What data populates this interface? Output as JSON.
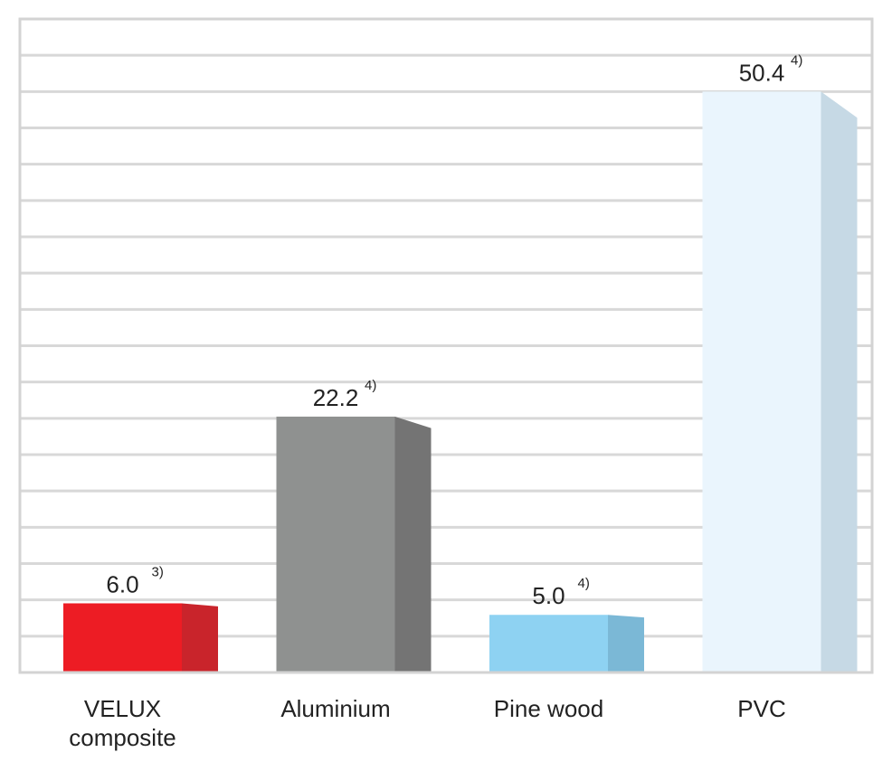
{
  "chart_data": {
    "type": "bar",
    "categories": [
      "VELUX\ncomposite",
      "Aluminium",
      "Pine wood",
      "PVC"
    ],
    "values": [
      6.0,
      22.2,
      5.0,
      50.4
    ],
    "value_labels": [
      "6.0",
      "22.2",
      "5.0",
      "50.4"
    ],
    "footnotes": [
      "3)",
      "4)",
      "4)",
      "4)"
    ],
    "title": "",
    "xlabel": "",
    "ylabel": "",
    "ylim": [
      0,
      56.7
    ],
    "grid": true,
    "legend": "none",
    "style": "3d-bar",
    "colors": [
      {
        "front": "#ed1c24",
        "side": "#c9242b"
      },
      {
        "front": "#8f9190",
        "side": "#747474"
      },
      {
        "front": "#8ed2f2",
        "side": "#7bb8d6"
      },
      {
        "front": "#eaf5fd",
        "side": "#c6d9e5"
      }
    ],
    "grid_color": "#d8d8d8",
    "frame_color": "#d3d3d3"
  }
}
